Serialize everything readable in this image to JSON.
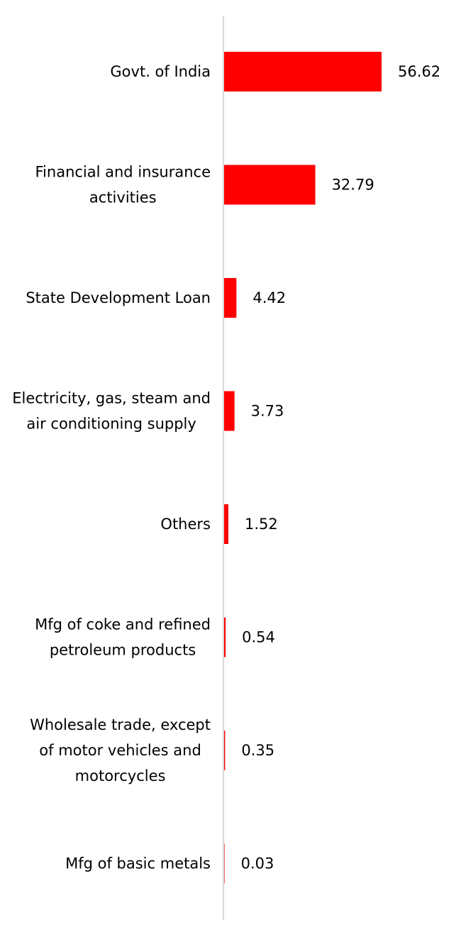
{
  "chart_data": {
    "type": "bar",
    "orientation": "horizontal",
    "categories": [
      [
        "Govt. of India"
      ],
      [
        "Financial and insurance",
        "activities"
      ],
      [
        "State Development Loan"
      ],
      [
        "Electricity, gas, steam and",
        "air conditioning supply"
      ],
      [
        "Others"
      ],
      [
        "Mfg of coke and refined",
        "petroleum products"
      ],
      [
        "Wholesale trade, except",
        "of motor vehicles and",
        "motorcycles"
      ],
      [
        "Mfg of basic metals"
      ]
    ],
    "values": [
      56.62,
      32.79,
      4.42,
      3.73,
      1.52,
      0.54,
      0.35,
      0.03
    ],
    "value_labels": [
      "56.62",
      "32.79",
      "4.42",
      "3.73",
      "1.52",
      "0.54",
      "0.35",
      "0.03"
    ],
    "title": "",
    "xlabel": "",
    "ylabel": "",
    "grid": false,
    "legend": "none",
    "colors": {
      "bar": "#ff0000",
      "axis": "#d9d9d9",
      "text": "#000000"
    }
  }
}
